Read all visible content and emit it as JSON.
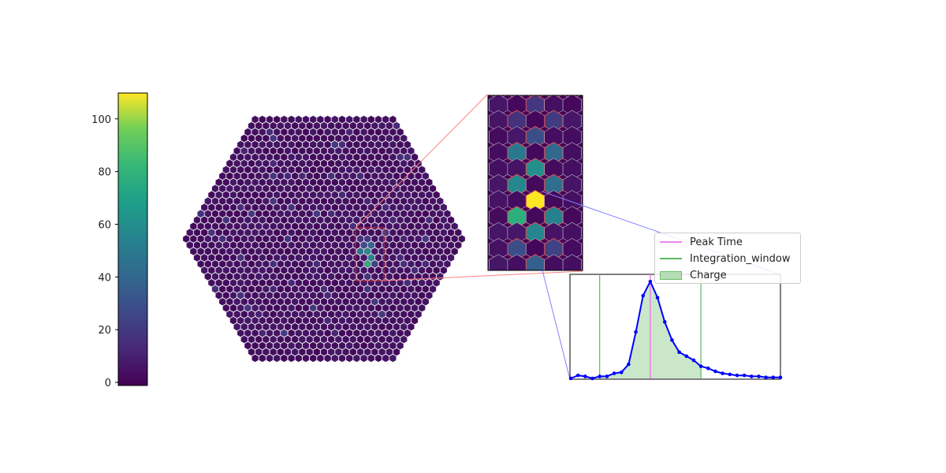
{
  "colors": {
    "viridis_low": "#440154",
    "viridis_high": "#fde725",
    "pixel_edge": "#5b3a7a",
    "zoom_lines": "#ff6b6b",
    "zoom_lines_blue": "#6f78ff",
    "waveform": "#0000ff",
    "peak_time": "#ee82ee",
    "integration_window": "#5cb85c",
    "charge_fill": "#a7d7a7"
  },
  "chart_data": [
    {
      "type": "heatmap",
      "name": "camera-image",
      "shape": "hexagonal camera of hexagonal pixels",
      "colorbar": {
        "colormap": "viridis",
        "range": [
          0,
          111
        ],
        "ticks": [
          "0",
          "20",
          "40",
          "60",
          "80",
          "100"
        ]
      },
      "background_level": 5,
      "hot_pixels": [
        {
          "value": 111
        },
        {
          "value": 78
        },
        {
          "value": 62
        },
        {
          "value": 58
        },
        {
          "value": 55
        },
        {
          "value": 50
        },
        {
          "value": 45
        },
        {
          "value": 42
        },
        {
          "value": 38
        },
        {
          "value": 30
        },
        {
          "value": 25
        },
        {
          "value": 22
        },
        {
          "value": 18
        }
      ]
    },
    {
      "type": "line",
      "name": "pixel-waveform",
      "samples": [
        0,
        1.5,
        1,
        0,
        1,
        1,
        2.5,
        3,
        7,
        23,
        41,
        48,
        40,
        28,
        19,
        13,
        11,
        9,
        6,
        5,
        3.5,
        2.5,
        2,
        1.5,
        1.5,
        1,
        1,
        0.5,
        0.5,
        0.5
      ],
      "peak_time_sample": 11,
      "integration_window": [
        4,
        18
      ],
      "ylim": [
        0,
        50
      ],
      "legend": [
        "Peak Time",
        "Integration_window",
        "Charge"
      ]
    }
  ]
}
